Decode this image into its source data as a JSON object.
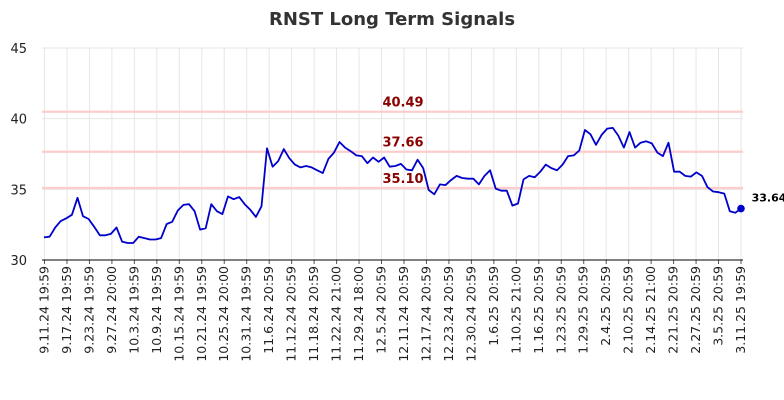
{
  "chart_data": {
    "type": "line",
    "title": "RNST Long Term Signals",
    "xlabel": "",
    "ylabel": "",
    "ylim": [
      30,
      45
    ],
    "y_ticks": [
      "30",
      "35",
      "40",
      "45"
    ],
    "x_tick_labels": [
      "9.11.24 19:59",
      "9.17.24 19:59",
      "9.23.24 19:59",
      "9.27.24 20:00",
      "10.3.24 19:59",
      "10.9.24 19:59",
      "10.15.24 19:59",
      "10.21.24 19:59",
      "10.25.24 20:00",
      "10.31.24 19:59",
      "11.6.24 20:59",
      "11.12.24 20:59",
      "11.18.24 20:59",
      "11.22.24 21:00",
      "11.29.24 18:00",
      "12.5.24 20:59",
      "12.11.24 20:59",
      "12.17.24 20:59",
      "12.23.24 20:59",
      "12.30.24 20:59",
      "1.6.25 20:59",
      "1.10.25 21:00",
      "1.16.25 20:59",
      "1.23.25 20:59",
      "1.29.25 20:59",
      "2.4.25 20:59",
      "2.10.25 20:59",
      "2.14.25 21:00",
      "2.21.25 20:59",
      "2.27.25 20:59",
      "3.5.25 20:59",
      "3.11.25 19:59"
    ],
    "grid": true,
    "levels": [
      {
        "value": 40.49,
        "label": "40.49"
      },
      {
        "value": 37.66,
        "label": "37.66"
      },
      {
        "value": 35.1,
        "label": "35.10"
      }
    ],
    "series": [
      {
        "values": [
          31.6,
          31.65,
          32.3,
          32.75,
          32.95,
          33.2,
          34.4,
          33.1,
          32.9,
          32.35,
          31.75,
          31.75,
          31.85,
          32.3,
          31.3,
          31.2,
          31.2,
          31.65,
          31.55,
          31.45,
          31.45,
          31.55,
          32.55,
          32.7,
          33.5,
          33.9,
          33.95,
          33.45,
          32.15,
          32.25,
          33.95,
          33.45,
          33.25,
          34.5,
          34.3,
          34.45,
          33.95,
          33.55,
          33.05,
          33.8,
          37.9,
          36.6,
          37.0,
          37.85,
          37.2,
          36.75,
          36.55,
          36.65,
          36.55,
          36.35,
          36.15,
          37.15,
          37.6,
          38.35,
          37.95,
          37.7,
          37.4,
          37.35,
          36.85,
          37.25,
          36.95,
          37.25,
          36.6,
          36.65,
          36.8,
          36.4,
          36.35,
          37.1,
          36.5,
          34.95,
          34.65,
          35.35,
          35.3,
          35.65,
          35.95,
          35.8,
          35.75,
          35.75,
          35.35,
          35.95,
          36.35,
          35.05,
          34.9,
          34.9,
          33.85,
          34.0,
          35.7,
          35.95,
          35.85,
          36.25,
          36.75,
          36.5,
          36.35,
          36.75,
          37.35,
          37.4,
          37.75,
          39.2,
          38.9,
          38.15,
          38.85,
          39.3,
          39.35,
          38.8,
          37.95,
          39.05,
          37.95,
          38.3,
          38.4,
          38.25,
          37.6,
          37.35,
          38.3,
          36.25,
          36.25,
          35.95,
          35.9,
          36.2,
          35.95,
          35.15,
          34.85,
          34.8,
          34.7,
          33.45,
          33.35,
          33.64
        ]
      }
    ],
    "last_value": "33.64",
    "colors": {
      "line": "#0000cc",
      "level_line": "#ffcccc",
      "level_text": "#8b0000",
      "grid": "#e6e6e6",
      "axis": "#000000",
      "last_point": "#0000cc"
    }
  }
}
